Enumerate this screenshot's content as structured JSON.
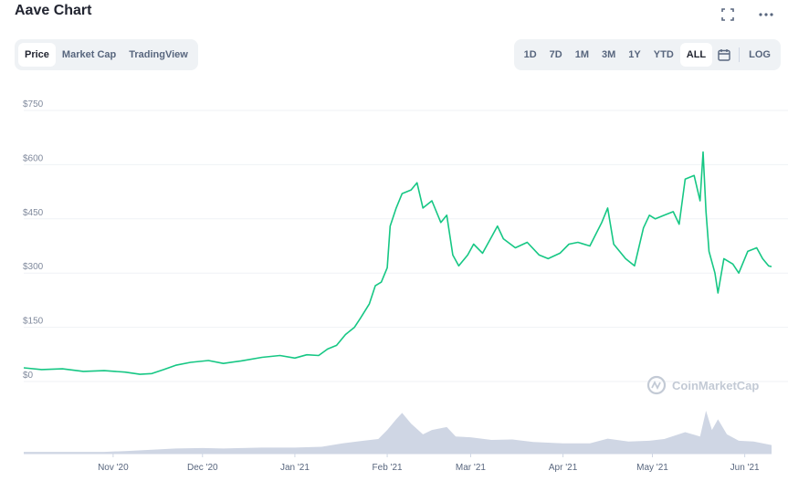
{
  "header": {
    "title": "Aave Chart"
  },
  "icons": {
    "fullscreen": "fullscreen-icon",
    "more": "more-icon",
    "calendar": "calendar-icon",
    "logo": "coinmarketcap-logo-icon"
  },
  "tabs": [
    "Price",
    "Market Cap",
    "TradingView"
  ],
  "active_tab": "Price",
  "ranges": [
    "1D",
    "7D",
    "1M",
    "3M",
    "1Y",
    "YTD",
    "ALL"
  ],
  "active_range": "ALL",
  "log_label": "LOG",
  "watermark": "CoinMarketCap",
  "colors": {
    "line": "#16c784",
    "volume": "#cfd6e4",
    "grid": "#eff2f5",
    "text": "#58667e"
  },
  "chart_data": {
    "type": "line",
    "title": "",
    "xlabel": "",
    "ylabel": "",
    "ylim": [
      0,
      750
    ],
    "yticks": [
      "$0",
      "$150",
      "$300",
      "$450",
      "$600",
      "$750"
    ],
    "ytick_values": [
      0,
      150,
      300,
      450,
      600,
      750
    ],
    "xticks": [
      "Nov '20",
      "Dec '20",
      "Jan '21",
      "Feb '21",
      "Mar '21",
      "Apr '21",
      "May '21",
      "Jun '21"
    ],
    "xtick_dates": [
      "2020-11-01",
      "2020-12-01",
      "2021-01-01",
      "2021-02-01",
      "2021-03-01",
      "2021-04-01",
      "2021-05-01",
      "2021-06-01"
    ],
    "xlim": [
      "2020-10-02",
      "2021-06-10"
    ],
    "series": [
      {
        "values": [
          [
            "2020-10-02",
            38
          ],
          [
            "2020-10-08",
            33
          ],
          [
            "2020-10-15",
            35
          ],
          [
            "2020-10-22",
            28
          ],
          [
            "2020-10-29",
            30
          ],
          [
            "2020-11-05",
            26
          ],
          [
            "2020-11-10",
            20
          ],
          [
            "2020-11-14",
            22
          ],
          [
            "2020-11-18",
            33
          ],
          [
            "2020-11-22",
            45
          ],
          [
            "2020-11-27",
            53
          ],
          [
            "2020-12-03",
            58
          ],
          [
            "2020-12-08",
            50
          ],
          [
            "2020-12-14",
            57
          ],
          [
            "2020-12-21",
            67
          ],
          [
            "2020-12-27",
            72
          ],
          [
            "2021-01-01",
            65
          ],
          [
            "2021-01-05",
            74
          ],
          [
            "2021-01-09",
            72
          ],
          [
            "2021-01-12",
            90
          ],
          [
            "2021-01-15",
            100
          ],
          [
            "2021-01-18",
            130
          ],
          [
            "2021-01-21",
            150
          ],
          [
            "2021-01-23",
            175
          ],
          [
            "2021-01-26",
            215
          ],
          [
            "2021-01-28",
            265
          ],
          [
            "2021-01-30",
            275
          ],
          [
            "2021-02-01",
            315
          ],
          [
            "2021-02-02",
            430
          ],
          [
            "2021-02-04",
            480
          ],
          [
            "2021-02-06",
            520
          ],
          [
            "2021-02-09",
            530
          ],
          [
            "2021-02-11",
            550
          ],
          [
            "2021-02-13",
            480
          ],
          [
            "2021-02-16",
            500
          ],
          [
            "2021-02-19",
            440
          ],
          [
            "2021-02-21",
            460
          ],
          [
            "2021-02-23",
            350
          ],
          [
            "2021-02-25",
            320
          ],
          [
            "2021-02-28",
            350
          ],
          [
            "2021-03-02",
            380
          ],
          [
            "2021-03-05",
            355
          ],
          [
            "2021-03-08",
            400
          ],
          [
            "2021-03-10",
            430
          ],
          [
            "2021-03-12",
            395
          ],
          [
            "2021-03-16",
            370
          ],
          [
            "2021-03-20",
            385
          ],
          [
            "2021-03-24",
            350
          ],
          [
            "2021-03-27",
            340
          ],
          [
            "2021-03-31",
            355
          ],
          [
            "2021-04-03",
            380
          ],
          [
            "2021-04-06",
            385
          ],
          [
            "2021-04-10",
            375
          ],
          [
            "2021-04-14",
            440
          ],
          [
            "2021-04-16",
            480
          ],
          [
            "2021-04-18",
            380
          ],
          [
            "2021-04-22",
            340
          ],
          [
            "2021-04-25",
            320
          ],
          [
            "2021-04-28",
            425
          ],
          [
            "2021-04-30",
            460
          ],
          [
            "2021-05-02",
            450
          ],
          [
            "2021-05-05",
            460
          ],
          [
            "2021-05-08",
            470
          ],
          [
            "2021-05-10",
            435
          ],
          [
            "2021-05-12",
            560
          ],
          [
            "2021-05-15",
            570
          ],
          [
            "2021-05-17",
            500
          ],
          [
            "2021-05-18",
            635
          ],
          [
            "2021-05-19",
            470
          ],
          [
            "2021-05-20",
            360
          ],
          [
            "2021-05-22",
            300
          ],
          [
            "2021-05-23",
            245
          ],
          [
            "2021-05-25",
            340
          ],
          [
            "2021-05-28",
            325
          ],
          [
            "2021-05-30",
            300
          ],
          [
            "2021-06-02",
            360
          ],
          [
            "2021-06-05",
            370
          ],
          [
            "2021-06-07",
            340
          ],
          [
            "2021-06-09",
            320
          ],
          [
            "2021-06-10",
            318
          ]
        ]
      }
    ],
    "volume": [
      [
        "2020-10-02",
        0.04
      ],
      [
        "2020-10-15",
        0.04
      ],
      [
        "2020-10-29",
        0.04
      ],
      [
        "2020-11-05",
        0.06
      ],
      [
        "2020-11-14",
        0.09
      ],
      [
        "2020-11-22",
        0.12
      ],
      [
        "2020-12-01",
        0.13
      ],
      [
        "2020-12-08",
        0.12
      ],
      [
        "2020-12-21",
        0.14
      ],
      [
        "2021-01-01",
        0.14
      ],
      [
        "2021-01-10",
        0.16
      ],
      [
        "2021-01-17",
        0.24
      ],
      [
        "2021-01-24",
        0.3
      ],
      [
        "2021-01-29",
        0.34
      ],
      [
        "2021-02-01",
        0.55
      ],
      [
        "2021-02-04",
        0.8
      ],
      [
        "2021-02-06",
        0.95
      ],
      [
        "2021-02-09",
        0.7
      ],
      [
        "2021-02-13",
        0.45
      ],
      [
        "2021-02-16",
        0.55
      ],
      [
        "2021-02-21",
        0.62
      ],
      [
        "2021-02-24",
        0.4
      ],
      [
        "2021-03-01",
        0.38
      ],
      [
        "2021-03-08",
        0.32
      ],
      [
        "2021-03-15",
        0.33
      ],
      [
        "2021-03-22",
        0.27
      ],
      [
        "2021-04-01",
        0.24
      ],
      [
        "2021-04-10",
        0.24
      ],
      [
        "2021-04-16",
        0.35
      ],
      [
        "2021-04-23",
        0.28
      ],
      [
        "2021-04-30",
        0.3
      ],
      [
        "2021-05-05",
        0.34
      ],
      [
        "2021-05-12",
        0.5
      ],
      [
        "2021-05-17",
        0.4
      ],
      [
        "2021-05-19",
        1.0
      ],
      [
        "2021-05-21",
        0.55
      ],
      [
        "2021-05-23",
        0.8
      ],
      [
        "2021-05-26",
        0.45
      ],
      [
        "2021-05-30",
        0.3
      ],
      [
        "2021-06-04",
        0.28
      ],
      [
        "2021-06-10",
        0.2
      ]
    ]
  }
}
